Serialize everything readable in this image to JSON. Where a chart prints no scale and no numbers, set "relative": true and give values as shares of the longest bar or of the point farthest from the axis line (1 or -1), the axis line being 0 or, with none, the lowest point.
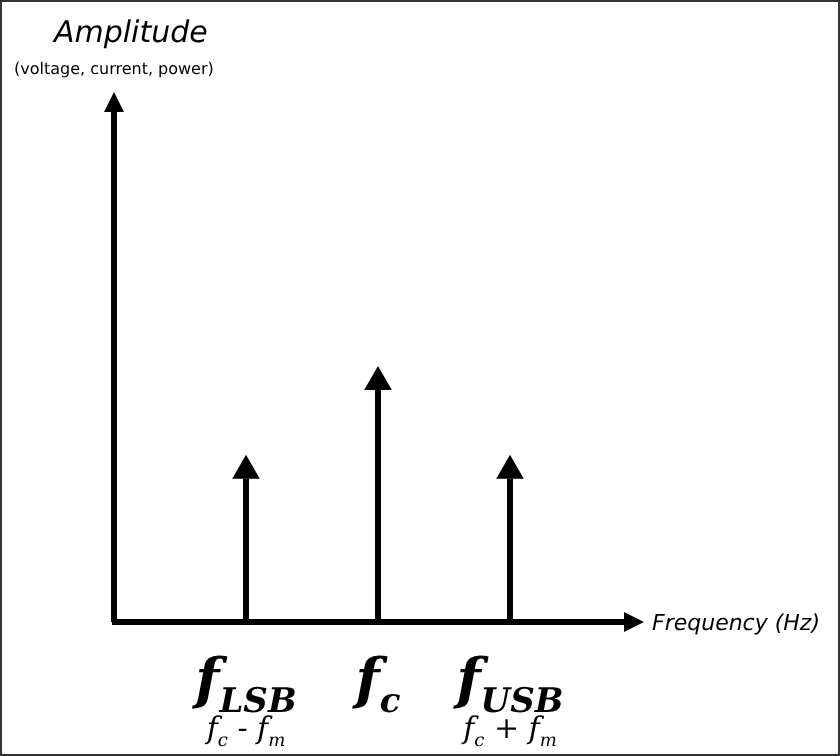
{
  "chart_data": {
    "type": "lollipop",
    "relative": true,
    "marker": "triangle",
    "xlabel": "Frequency (Hz)",
    "categories": [
      "f$_{LSB}$",
      "f$_{c}$",
      "f$_{USB}$"
    ],
    "series": [
      {
        "color": "#000000",
        "values": [
          0.63,
          1,
          0.63
        ]
      }
    ],
    "annotations": [
      "Amplitude",
      "(voltage, current, power)",
      "f$_{c}$ - f$_{m}$",
      "f$_{c}$ + f$_{m}$"
    ]
  }
}
